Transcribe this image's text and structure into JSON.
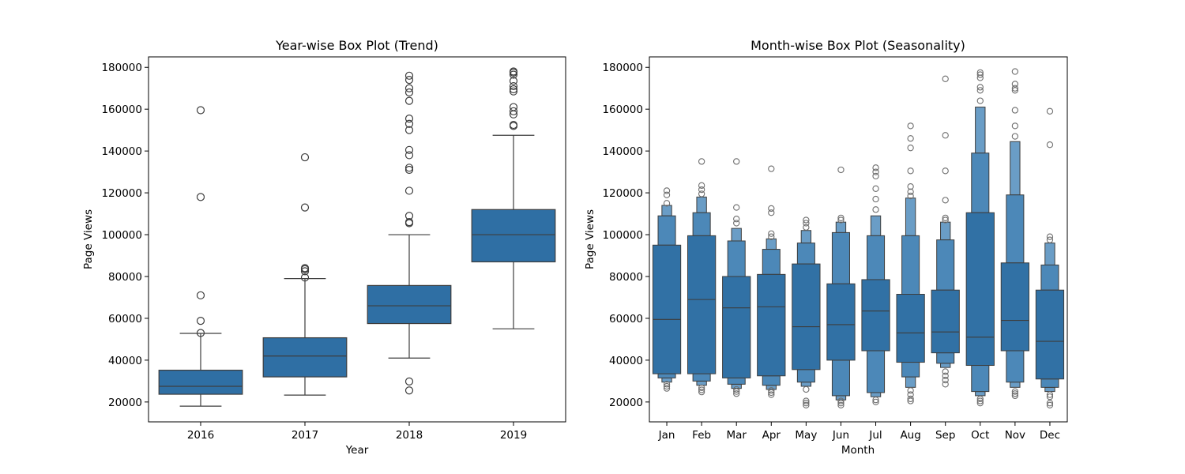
{
  "chart_data": [
    {
      "type": "box",
      "title": "Year-wise Box Plot (Trend)",
      "xlabel": "Year",
      "ylabel": "Page Views",
      "ylim": [
        10500,
        185000
      ],
      "yticks": [
        20000,
        40000,
        60000,
        80000,
        100000,
        120000,
        140000,
        160000,
        180000
      ],
      "color": "#2f6fa4",
      "categories": [
        "2016",
        "2017",
        "2018",
        "2019"
      ],
      "boxes": [
        {
          "whislo": 18000,
          "q1": 23700,
          "median": 27500,
          "q3": 35200,
          "whishi": 52800,
          "fliers": [
            53000,
            58800,
            71000,
            118000,
            159500
          ]
        },
        {
          "whislo": 23300,
          "q1": 32000,
          "median": 42000,
          "q3": 50700,
          "whishi": 79000,
          "fliers": [
            79500,
            82500,
            83500,
            84000,
            113000,
            137000
          ]
        },
        {
          "whislo": 41000,
          "q1": 57500,
          "median": 66000,
          "q3": 75700,
          "whishi": 100000,
          "fliers": [
            25500,
            29800,
            105500,
            106000,
            109000,
            121000,
            131000,
            132000,
            138000,
            140500,
            150000,
            153000,
            155500,
            164000,
            168000,
            170000,
            174000,
            176000
          ]
        },
        {
          "whislo": 55000,
          "q1": 87000,
          "median": 100000,
          "q3": 112000,
          "whishi": 147500,
          "fliers": [
            152000,
            152500,
            157500,
            159000,
            161000,
            168500,
            169500,
            171000,
            173500,
            176500,
            177500,
            178000
          ]
        }
      ]
    },
    {
      "type": "boxen",
      "title": "Month-wise Box Plot (Seasonality)",
      "xlabel": "Month",
      "ylabel": "Page Views",
      "ylim": [
        10500,
        185000
      ],
      "yticks": [
        20000,
        40000,
        60000,
        80000,
        100000,
        120000,
        140000,
        160000,
        180000
      ],
      "color": "#2f6fa4",
      "categories": [
        "Jan",
        "Feb",
        "Mar",
        "Apr",
        "May",
        "Jun",
        "Jul",
        "Aug",
        "Sep",
        "Oct",
        "Nov",
        "Dec"
      ],
      "boxes": [
        {
          "median": 59500,
          "levels": [
            [
              33500,
              95000
            ],
            [
              31500,
              109000
            ],
            [
              29500,
              114000
            ]
          ],
          "outliers": [
            26500,
            27500,
            28500,
            115000,
            119000,
            121000
          ]
        },
        {
          "median": 69000,
          "levels": [
            [
              33500,
              99500
            ],
            [
              30000,
              110500
            ],
            [
              28000,
              118000
            ]
          ],
          "outliers": [
            24800,
            25800,
            26800,
            119500,
            121500,
            123500,
            135000
          ]
        },
        {
          "median": 65000,
          "levels": [
            [
              31500,
              80000
            ],
            [
              28500,
              97000
            ],
            [
              26500,
              103000
            ]
          ],
          "outliers": [
            24000,
            25000,
            26000,
            105500,
            107500,
            113000,
            135000
          ]
        },
        {
          "median": 65500,
          "levels": [
            [
              32500,
              81000
            ],
            [
              28000,
              93000
            ],
            [
              26000,
              98000
            ]
          ],
          "outliers": [
            23500,
            24500,
            25500,
            99000,
            100500,
            110500,
            112500,
            131500
          ]
        },
        {
          "median": 56000,
          "levels": [
            [
              35500,
              86000
            ],
            [
              29500,
              96000
            ],
            [
              27500,
              102000
            ]
          ],
          "outliers": [
            18500,
            19500,
            20500,
            26000,
            103500,
            105500,
            107000
          ]
        },
        {
          "median": 57000,
          "levels": [
            [
              40000,
              76500
            ],
            [
              23000,
              101000
            ],
            [
              21000,
              106000
            ]
          ],
          "outliers": [
            18500,
            19500,
            20500,
            107000,
            108000,
            131000
          ]
        },
        {
          "median": 63500,
          "levels": [
            [
              44500,
              78500
            ],
            [
              24500,
              99500
            ],
            [
              22500,
              109000
            ]
          ],
          "outliers": [
            20000,
            21000,
            112000,
            117000,
            122000,
            128000,
            130000,
            132000
          ]
        },
        {
          "median": 53000,
          "levels": [
            [
              39000,
              71500
            ],
            [
              32000,
              99500
            ],
            [
              27000,
              117500
            ]
          ],
          "outliers": [
            20500,
            21500,
            23500,
            25500,
            118500,
            120500,
            123000,
            130500,
            141500,
            146000,
            152000
          ]
        },
        {
          "median": 53500,
          "levels": [
            [
              43500,
              73500
            ],
            [
              38500,
              97500
            ],
            [
              36500,
              106000
            ]
          ],
          "outliers": [
            28500,
            30500,
            32500,
            34500,
            107000,
            108000,
            116500,
            130500,
            147500,
            174500
          ]
        },
        {
          "median": 51000,
          "levels": [
            [
              37500,
              110500
            ],
            [
              25000,
              139000
            ],
            [
              23000,
              161000
            ]
          ],
          "outliers": [
            19500,
            20500,
            21500,
            164000,
            169000,
            170500,
            175000,
            176500,
            177500
          ]
        },
        {
          "median": 59000,
          "levels": [
            [
              44500,
              86500
            ],
            [
              29500,
              119000
            ],
            [
              27000,
              144500
            ]
          ],
          "outliers": [
            23000,
            24000,
            25000,
            147000,
            152000,
            159500,
            169000,
            170000,
            172000,
            178000
          ]
        },
        {
          "median": 49000,
          "levels": [
            [
              31000,
              73500
            ],
            [
              27000,
              85500
            ],
            [
              25000,
              96000
            ]
          ],
          "outliers": [
            18500,
            19500,
            22500,
            23500,
            97500,
            99000,
            143000,
            159000
          ]
        }
      ]
    }
  ]
}
